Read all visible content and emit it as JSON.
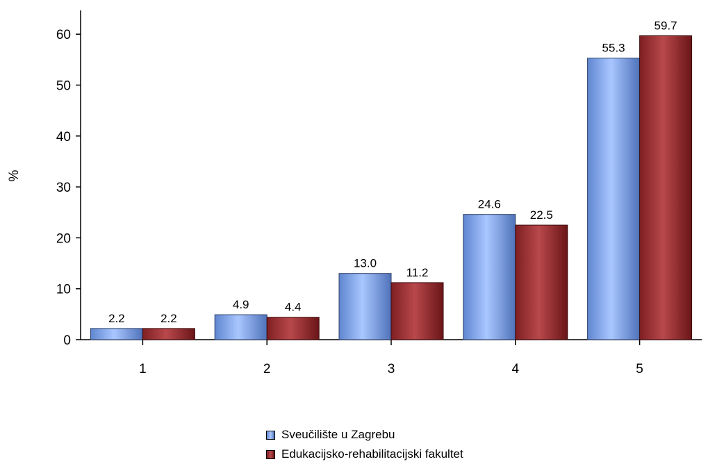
{
  "chart_data": {
    "type": "bar",
    "categories": [
      "1",
      "2",
      "3",
      "4",
      "5"
    ],
    "series": [
      {
        "name": "Sveučilište u Zagrebu",
        "values": [
          2.2,
          4.9,
          13.0,
          24.6,
          55.3
        ],
        "labels": [
          "2.2",
          "4.9",
          "13.0",
          "24.6",
          "55.3"
        ],
        "color": "#7da3e8"
      },
      {
        "name": "Edukacijsko-rehabilitacijski fakultet",
        "values": [
          2.2,
          4.4,
          11.2,
          22.5,
          59.7
        ],
        "labels": [
          "2.2",
          "4.4",
          "11.2",
          "22.5",
          "59.7"
        ],
        "color": "#a8363a"
      }
    ],
    "ylabel": "%",
    "xlabel": "",
    "ylim": [
      0,
      65
    ],
    "yticks": [
      0,
      10,
      20,
      30,
      40,
      50,
      60
    ],
    "grid": false,
    "legend_position": "bottom"
  }
}
